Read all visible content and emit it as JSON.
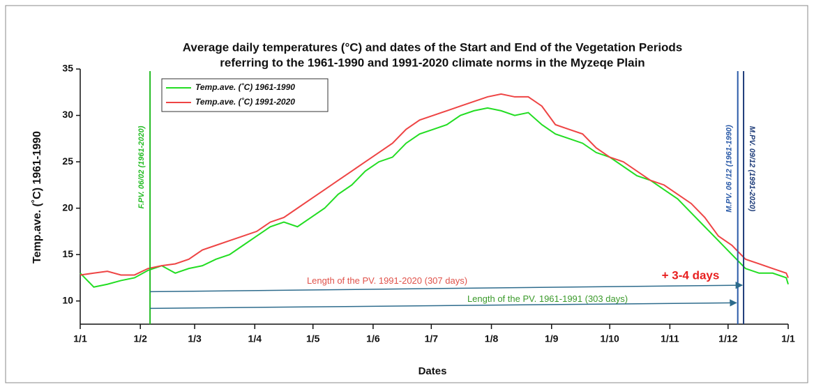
{
  "chart_data": {
    "type": "line",
    "title": [
      "Average daily temperatures (°C) and dates of the Start and End of the Vegetation Periods",
      "referring to the 1961-1990 and 1991-2020 climate norms in the Myzeqe Plain"
    ],
    "xlabel": "Dates",
    "ylabel": "Temp.ave. (˚C) 1961-1990",
    "x": [
      1,
      8,
      15,
      22,
      29,
      36,
      43,
      50,
      57,
      64,
      71,
      78,
      85,
      92,
      99,
      106,
      113,
      120,
      127,
      134,
      141,
      148,
      155,
      162,
      169,
      176,
      183,
      190,
      197,
      204,
      211,
      218,
      225,
      232,
      239,
      246,
      253,
      260,
      267,
      274,
      281,
      288,
      295,
      302,
      309,
      316,
      323,
      330,
      337,
      344,
      351,
      358,
      365,
      366
    ],
    "series": [
      {
        "name": "Temp.ave. (˚C) 1961-1990",
        "color": "#22dd22",
        "values": [
          13.0,
          11.5,
          11.8,
          12.2,
          12.5,
          13.3,
          13.8,
          13.0,
          13.5,
          13.8,
          14.5,
          15.0,
          16.0,
          17.0,
          18.0,
          18.5,
          18.0,
          19.0,
          20.0,
          21.5,
          22.5,
          24.0,
          25.0,
          25.5,
          27.0,
          28.0,
          28.5,
          29.0,
          30.0,
          30.5,
          30.8,
          30.5,
          30.0,
          30.3,
          29.0,
          28.0,
          27.5,
          27.0,
          26.0,
          25.5,
          24.5,
          23.5,
          23.0,
          22.0,
          21.0,
          19.5,
          18.0,
          16.5,
          15.0,
          13.5,
          13.0,
          13.0,
          12.5,
          11.8
        ]
      },
      {
        "name": "Temp.ave. (˚C) 1991-2020",
        "color": "#ee4444",
        "values": [
          12.8,
          13.0,
          13.2,
          12.8,
          12.8,
          13.5,
          13.8,
          14.0,
          14.5,
          15.5,
          16.0,
          16.5,
          17.0,
          17.5,
          18.5,
          19.0,
          20.0,
          21.0,
          22.0,
          23.0,
          24.0,
          25.0,
          26.0,
          27.0,
          28.5,
          29.5,
          30.0,
          30.5,
          31.0,
          31.5,
          32.0,
          32.3,
          32.0,
          32.0,
          31.0,
          29.0,
          28.5,
          28.0,
          26.5,
          25.5,
          25.0,
          24.0,
          23.0,
          22.5,
          21.5,
          20.5,
          19.0,
          17.0,
          16.0,
          14.5,
          14.0,
          13.5,
          13.0,
          12.5
        ]
      }
    ],
    "xlim": [
      1,
      366
    ],
    "ylim": [
      7.5,
      35
    ],
    "yticks": [
      10,
      15,
      20,
      25,
      30,
      35
    ],
    "xticks": [
      {
        "value": 1,
        "label": "1/1"
      },
      {
        "value": 32,
        "label": "1/2"
      },
      {
        "value": 60,
        "label": "1/3"
      },
      {
        "value": 91,
        "label": "1/4"
      },
      {
        "value": 121,
        "label": "1/5"
      },
      {
        "value": 152,
        "label": "1/6"
      },
      {
        "value": 182,
        "label": "1/7"
      },
      {
        "value": 213,
        "label": "1/8"
      },
      {
        "value": 244,
        "label": "1/9"
      },
      {
        "value": 274,
        "label": "1/10"
      },
      {
        "value": 305,
        "label": "1/11"
      },
      {
        "value": 335,
        "label": "1/12"
      },
      {
        "value": 366,
        "label": "1/1"
      }
    ],
    "vlines": [
      {
        "x": 37,
        "label": "F.PV. 06/02 (1961-2020)",
        "color": "#22bb22"
      },
      {
        "x": 340,
        "label": "M.PV. 06 /12 (1961-1990)",
        "color": "#2a5aa8"
      },
      {
        "x": 343,
        "label": "M.PV. 09/12 (1991-2020)",
        "color": "#1f3d7a"
      }
    ],
    "arrows": [
      {
        "label": "Length of the PV. 1991-2020 (307 days)",
        "color": "#e0524a",
        "x": [
          37,
          343
        ],
        "y": [
          11,
          11.7
        ]
      },
      {
        "label": "Length of the PV. 1961-1991 (303 days)",
        "color": "#3a9a2a",
        "x": [
          37,
          340
        ],
        "y": [
          9.2,
          9.8
        ]
      }
    ],
    "annotation": "+ 3-4 days",
    "legend": "upper left"
  }
}
